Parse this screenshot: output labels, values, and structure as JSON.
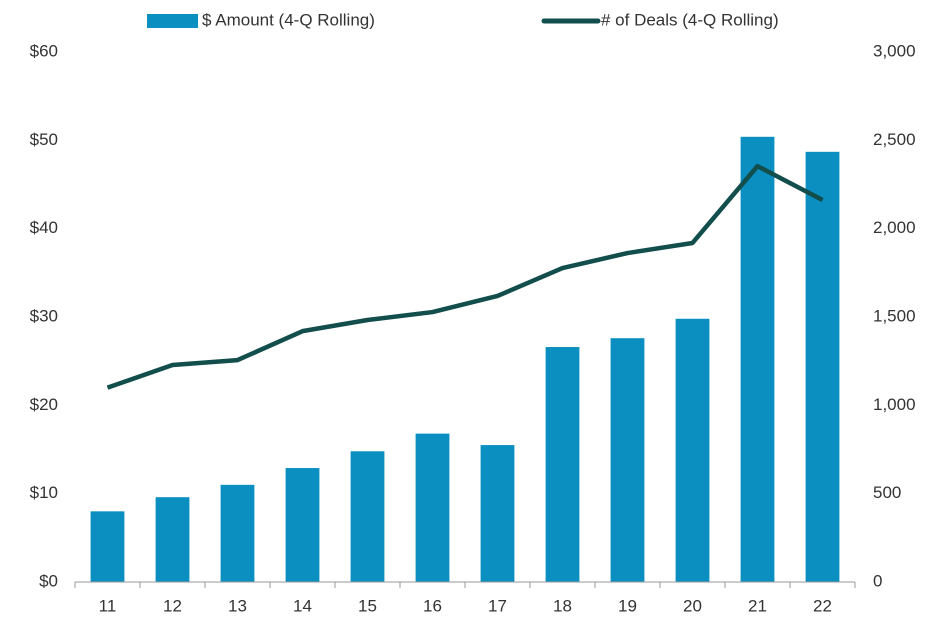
{
  "chart_data": {
    "type": "bar_line",
    "categories": [
      "11",
      "12",
      "13",
      "14",
      "15",
      "16",
      "17",
      "18",
      "19",
      "20",
      "21",
      "22"
    ],
    "series": [
      {
        "name": "$ Amount (4-Q Rolling)",
        "color": "#0a8fc0",
        "type": "bar",
        "values": [
          8.0,
          9.6,
          11.0,
          12.9,
          14.8,
          16.8,
          15.5,
          26.6,
          27.6,
          29.8,
          50.4,
          48.7
        ]
      },
      {
        "name": "# of Deals (4-Q Rolling)",
        "color": "#124e4c",
        "type": "line",
        "axis": "y2",
        "values": [
          1100,
          1228,
          1256,
          1420,
          1483,
          1528,
          1619,
          1777,
          1862,
          1919,
          2354,
          2162
        ]
      }
    ],
    "ylim": [
      0,
      60
    ],
    "yticks": [
      {
        "value": 0,
        "label": "$0"
      },
      {
        "value": 10,
        "label": "$10"
      },
      {
        "value": 20,
        "label": "$20"
      },
      {
        "value": 30,
        "label": "$30"
      },
      {
        "value": 40,
        "label": "$40"
      },
      {
        "value": 50,
        "label": "$50"
      },
      {
        "value": 60,
        "label": "$60"
      }
    ],
    "y2lim": [
      0,
      3000
    ],
    "y2ticks": [
      0,
      500,
      {
        "value": 1000,
        "label": "1,000"
      },
      {
        "value": 1500,
        "label": "1,500"
      },
      {
        "value": 2000,
        "label": "2,000"
      },
      {
        "value": 2500,
        "label": "2,500"
      },
      {
        "value": 3000,
        "label": "3,000"
      }
    ],
    "grid": false,
    "legend": "top"
  }
}
